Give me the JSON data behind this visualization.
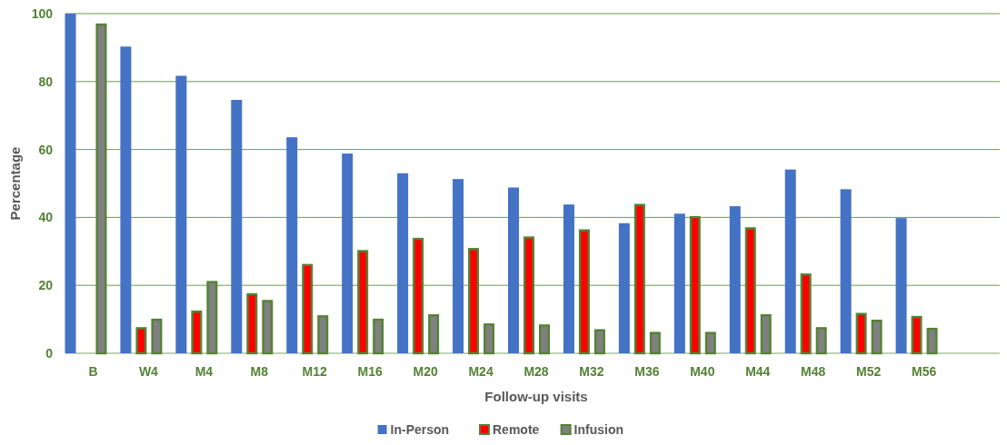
{
  "chart_data": {
    "type": "bar",
    "xlabel": "Follow-up visits",
    "ylabel": "Percentage",
    "categories": [
      "B",
      "W4",
      "M4",
      "M8",
      "M12",
      "M16",
      "M20",
      "M24",
      "M28",
      "M32",
      "M36",
      "M40",
      "M44",
      "M48",
      "M52",
      "M56",
      null
    ],
    "series": [
      {
        "name": "In-Person",
        "color": "#4472c4",
        "values": [
          100,
          90.3,
          81.7,
          74.6,
          63.6,
          58.8,
          53.0,
          51.3,
          48.8,
          43.8,
          38.3,
          41.1,
          43.3,
          54.1,
          48.3,
          39.8,
          null
        ]
      },
      {
        "name": "Remote",
        "color": "#ff0000",
        "values": [
          null,
          7.7,
          12.6,
          17.7,
          26.3,
          30.4,
          34.0,
          31.0,
          34.4,
          36.5,
          44.0,
          40.4,
          37.1,
          23.5,
          11.9,
          11.0,
          null
        ]
      },
      {
        "name": "Infusion",
        "color": "#808080",
        "values": [
          97.1,
          10.2,
          21.3,
          15.7,
          11.2,
          10.2,
          11.5,
          8.8,
          8.5,
          7.1,
          6.3,
          6.3,
          11.5,
          7.7,
          9.9,
          7.5,
          null
        ]
      }
    ],
    "ylim": [
      0,
      100
    ],
    "yticks": [
      0,
      20,
      40,
      60,
      80,
      100
    ],
    "grid": "y",
    "legend": "bottom"
  }
}
